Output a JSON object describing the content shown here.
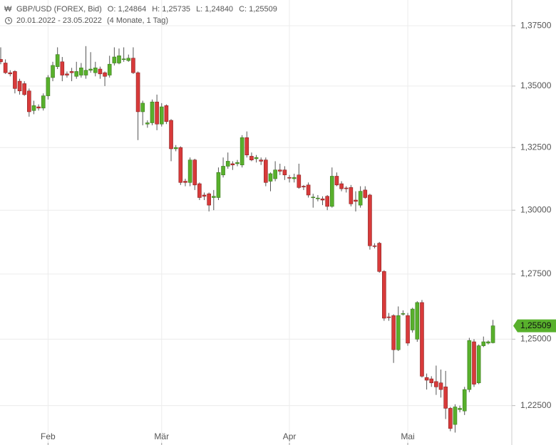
{
  "chart_data": {
    "type": "candlestick",
    "title": "GBP/USD (FOREX, Bid)",
    "header_values": [
      "O: 1,24864",
      "H: 1,25735",
      "L: 1,24840",
      "C: 1,25509"
    ],
    "subtitle": "20.01.2022 - 23.05.2022",
    "period": "(4 Monate, 1 Tag)",
    "last_price_label": "1,25509",
    "up_color": "#58b02c",
    "down_color": "#d83a3a",
    "header_color": "#58b02c",
    "log_scale": true,
    "grid": true,
    "ylim": [
      1.2112,
      1.3858
    ],
    "yticks": [
      {
        "value": 1.225,
        "label": "1,22500"
      },
      {
        "value": 1.25,
        "label": "1,25000"
      },
      {
        "value": 1.275,
        "label": "1,27500"
      },
      {
        "value": 1.3,
        "label": "1,30000"
      },
      {
        "value": 1.325,
        "label": "1,32500"
      },
      {
        "value": 1.35,
        "label": "1,35000"
      },
      {
        "value": 1.375,
        "label": "1,37500"
      }
    ],
    "categories": [
      null,
      null,
      null,
      null,
      null,
      null,
      null,
      null,
      null,
      null,
      "Feb",
      null,
      null,
      null,
      null,
      null,
      null,
      null,
      null,
      null,
      null,
      null,
      null,
      null,
      null,
      null,
      null,
      null,
      null,
      null,
      null,
      null,
      null,
      null,
      "Mär",
      null,
      null,
      null,
      null,
      null,
      null,
      null,
      null,
      null,
      null,
      null,
      null,
      null,
      null,
      null,
      null,
      null,
      null,
      null,
      null,
      null,
      null,
      null,
      null,
      null,
      null,
      "Apr",
      null,
      null,
      null,
      null,
      null,
      null,
      null,
      null,
      null,
      null,
      null,
      null,
      null,
      null,
      null,
      null,
      null,
      null,
      null,
      null,
      null,
      null,
      null,
      null,
      "Mai",
      null,
      null,
      null,
      null,
      null,
      null,
      null,
      null,
      null,
      null,
      null,
      null,
      null,
      null,
      null,
      null,
      null,
      null
    ],
    "open": [
      1.361,
      1.3595,
      1.3555,
      1.356,
      1.352,
      1.351,
      1.348,
      1.34,
      1.3415,
      1.341,
      1.346,
      1.3535,
      1.358,
      1.36,
      1.355,
      1.356,
      1.354,
      1.3545,
      1.3545,
      1.3565,
      1.3555,
      1.357,
      1.3555,
      1.3545,
      1.3595,
      1.3595,
      1.361,
      1.3605,
      1.3615,
      1.3555,
      1.3395,
      1.3345,
      1.335,
      1.3435,
      1.3345,
      1.342,
      1.336,
      1.3245,
      1.325,
      1.3115,
      1.311,
      1.32,
      1.3105,
      1.306,
      1.3065,
      1.305,
      1.305,
      1.314,
      1.3175,
      1.3185,
      1.3185,
      1.318,
      1.329,
      1.3215,
      1.3205,
      1.32,
      1.32,
      1.3115,
      1.3125,
      1.316,
      1.316,
      1.313,
      1.3125,
      1.314,
      1.3095,
      1.31,
      1.305,
      1.3045,
      1.3045,
      1.3055,
      1.3015,
      1.3135,
      1.3105,
      1.3088,
      1.309,
      1.304,
      1.302,
      1.308,
      1.306,
      1.286,
      1.287,
      1.276,
      1.2585,
      1.259,
      1.246,
      1.2595,
      1.259,
      1.2535,
      1.25,
      1.264,
      1.2355,
      1.235,
      1.234,
      1.2335,
      1.232,
      1.224,
      1.218,
      1.2235,
      1.223,
      1.231,
      1.249,
      1.2335,
      1.2475,
      1.2485,
      1.24864
    ],
    "high": [
      1.366,
      1.361,
      1.3565,
      1.3565,
      1.353,
      1.352,
      1.349,
      1.344,
      1.3425,
      1.347,
      1.3545,
      1.36,
      1.366,
      1.362,
      1.356,
      1.3575,
      1.36,
      1.3595,
      1.3665,
      1.364,
      1.36,
      1.358,
      1.356,
      1.3625,
      1.366,
      1.3655,
      1.366,
      1.363,
      1.366,
      1.356,
      1.344,
      1.336,
      1.3445,
      1.3465,
      1.343,
      1.3425,
      1.3365,
      1.326,
      1.3255,
      1.3125,
      1.321,
      1.3205,
      1.311,
      1.307,
      1.307,
      1.308,
      1.317,
      1.321,
      1.323,
      1.3195,
      1.32,
      1.33,
      1.3315,
      1.323,
      1.322,
      1.321,
      1.321,
      1.315,
      1.3195,
      1.3185,
      1.3175,
      1.314,
      1.3145,
      1.3185,
      1.31,
      1.311,
      1.3065,
      1.306,
      1.3055,
      1.306,
      1.317,
      1.315,
      1.3115,
      1.3095,
      1.31,
      1.3075,
      1.3095,
      1.3095,
      1.3065,
      1.287,
      1.2875,
      1.2765,
      1.26,
      1.2595,
      1.2625,
      1.261,
      1.26,
      1.262,
      1.2645,
      1.265,
      1.237,
      1.236,
      1.24,
      1.2385,
      1.238,
      1.2245,
      1.2255,
      1.225,
      1.232,
      1.2505,
      1.25,
      1.248,
      1.251,
      1.2495,
      1.25735
    ],
    "low": [
      1.359,
      1.355,
      1.354,
      1.347,
      1.3465,
      1.346,
      1.3375,
      1.3385,
      1.34,
      1.34,
      1.3445,
      1.352,
      1.357,
      1.352,
      1.3535,
      1.352,
      1.353,
      1.3535,
      1.353,
      1.3555,
      1.354,
      1.353,
      1.35,
      1.3535,
      1.3585,
      1.359,
      1.36,
      1.36,
      1.355,
      1.328,
      1.334,
      1.333,
      1.334,
      1.332,
      1.3335,
      1.3345,
      1.3195,
      1.3235,
      1.31,
      1.3095,
      1.3095,
      1.308,
      1.304,
      1.304,
      1.2995,
      1.3,
      1.304,
      1.313,
      1.3165,
      1.316,
      1.3175,
      1.317,
      1.321,
      1.3195,
      1.319,
      1.318,
      1.3095,
      1.3075,
      1.3115,
      1.314,
      1.312,
      1.311,
      1.311,
      1.3085,
      1.308,
      1.305,
      1.301,
      1.3035,
      1.302,
      1.3,
      1.301,
      1.3095,
      1.3075,
      1.307,
      1.3015,
      1.2995,
      1.301,
      1.3045,
      1.2845,
      1.285,
      1.2755,
      1.257,
      1.257,
      1.241,
      1.2455,
      1.259,
      1.2475,
      1.2525,
      1.249,
      1.2355,
      1.231,
      1.232,
      1.229,
      1.228,
      1.22,
      1.2155,
      1.215,
      1.2225,
      1.2215,
      1.23,
      1.232,
      1.233,
      1.247,
      1.248,
      1.2484
    ],
    "close": [
      1.36,
      1.3555,
      1.355,
      1.349,
      1.348,
      1.3465,
      1.3395,
      1.342,
      1.341,
      1.346,
      1.3535,
      1.3585,
      1.363,
      1.3545,
      1.3545,
      1.3555,
      1.356,
      1.3575,
      1.3565,
      1.357,
      1.3575,
      1.355,
      1.354,
      1.359,
      1.362,
      1.3625,
      1.3612,
      1.3615,
      1.3555,
      1.3395,
      1.343,
      1.335,
      1.3435,
      1.3345,
      1.3415,
      1.3355,
      1.3245,
      1.325,
      1.311,
      1.311,
      1.32,
      1.31,
      1.305,
      1.3055,
      1.302,
      1.3055,
      1.315,
      1.3175,
      1.3195,
      1.318,
      1.319,
      1.329,
      1.322,
      1.32,
      1.321,
      1.3195,
      1.311,
      1.3145,
      1.316,
      1.3155,
      1.314,
      1.3128,
      1.313,
      1.309,
      1.3092,
      1.306,
      1.3052,
      1.3048,
      1.304,
      1.3015,
      1.3135,
      1.31,
      1.3085,
      1.3085,
      1.3025,
      1.3035,
      1.3075,
      1.305,
      1.286,
      1.2858,
      1.276,
      1.258,
      1.2582,
      1.246,
      1.259,
      1.2598,
      1.2485,
      1.2615,
      1.264,
      1.236,
      1.2345,
      1.2335,
      1.232,
      1.231,
      1.224,
      1.2165,
      1.2245,
      1.224,
      1.231,
      1.2495,
      1.233,
      1.2475,
      1.249,
      1.249,
      1.25509
    ]
  }
}
